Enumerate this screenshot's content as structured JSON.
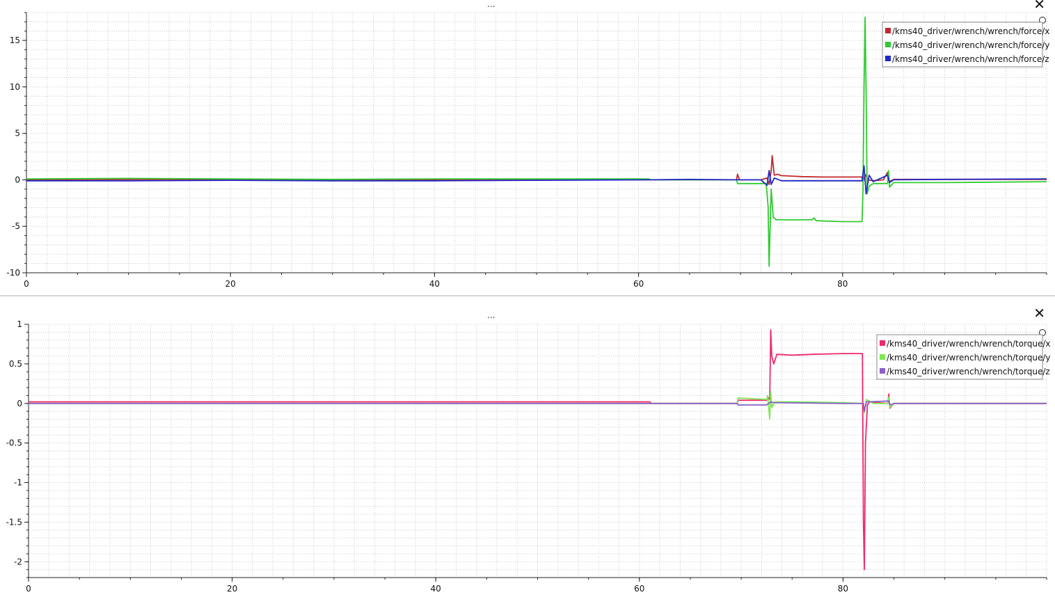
{
  "panels": [
    {
      "handle_text": "...",
      "close_glyph": "✕",
      "chart_data": {
        "type": "line",
        "xlim": [
          0,
          100
        ],
        "ylim": [
          -10,
          18
        ],
        "x_ticks": [
          0,
          20,
          40,
          60,
          80
        ],
        "y_ticks": [
          -10,
          -5,
          0,
          5,
          10,
          15
        ],
        "grid": true,
        "legend_position": "top-right",
        "series": [
          {
            "name": "/kms40_driver/wrench/wrench/force/x",
            "color": "#c0282d",
            "points": [
              [
                0,
                0
              ],
              [
                10,
                0.05
              ],
              [
                20,
                0.05
              ],
              [
                30,
                0
              ],
              [
                40,
                0
              ],
              [
                50,
                0
              ],
              [
                61,
                0
              ],
              [
                65,
                0
              ],
              [
                69.6,
                0
              ],
              [
                69.7,
                0.6
              ],
              [
                69.9,
                0
              ],
              [
                72,
                0
              ],
              [
                72.6,
                0.2
              ],
              [
                72.8,
                -0.5
              ],
              [
                73,
                1.0
              ],
              [
                73.1,
                2.6
              ],
              [
                73.3,
                0.5
              ],
              [
                73.6,
                0.6
              ],
              [
                74,
                0.45
              ],
              [
                76,
                0.35
              ],
              [
                78,
                0.3
              ],
              [
                80,
                0.3
              ],
              [
                81.9,
                0.3
              ],
              [
                82,
                -0.2
              ],
              [
                82.2,
                0.6
              ],
              [
                82.5,
                0
              ],
              [
                83,
                -0.1
              ],
              [
                84,
                0
              ],
              [
                84.4,
                0.8
              ],
              [
                84.6,
                -0.2
              ],
              [
                85,
                0.05
              ],
              [
                90,
                0.05
              ],
              [
                100,
                0.05
              ]
            ]
          },
          {
            "name": "/kms40_driver/wrench/wrench/force/y",
            "color": "#2fcb2f",
            "points": [
              [
                0,
                0.1
              ],
              [
                10,
                0.15
              ],
              [
                20,
                0.1
              ],
              [
                30,
                0.05
              ],
              [
                40,
                0.1
              ],
              [
                50,
                0.1
              ],
              [
                61,
                0.1
              ],
              [
                61.2,
                0
              ],
              [
                65,
                0
              ],
              [
                69.6,
                0
              ],
              [
                69.7,
                -0.4
              ],
              [
                72,
                -0.4
              ],
              [
                72.5,
                -0.4
              ],
              [
                72.6,
                -1.5
              ],
              [
                72.7,
                -3
              ],
              [
                72.8,
                -9.3
              ],
              [
                72.9,
                -5
              ],
              [
                73,
                -1
              ],
              [
                73.2,
                -4
              ],
              [
                73.5,
                -4.3
              ],
              [
                74,
                -4.3
              ],
              [
                77,
                -4.3
              ],
              [
                77.2,
                -4.1
              ],
              [
                77.4,
                -4.4
              ],
              [
                80,
                -4.5
              ],
              [
                81.9,
                -4.5
              ],
              [
                82,
                -1
              ],
              [
                82.1,
                10
              ],
              [
                82.2,
                17.5
              ],
              [
                82.3,
                10
              ],
              [
                82.4,
                -1.5
              ],
              [
                82.6,
                -0.7
              ],
              [
                83,
                -0.4
              ],
              [
                84.4,
                -0.4
              ],
              [
                84.5,
                1.0
              ],
              [
                84.6,
                -0.8
              ],
              [
                85,
                -0.3
              ],
              [
                90,
                -0.3
              ],
              [
                100,
                -0.2
              ]
            ]
          },
          {
            "name": "/kms40_driver/wrench/wrench/force/z",
            "color": "#1f2ac8",
            "points": [
              [
                0,
                -0.1
              ],
              [
                10,
                -0.1
              ],
              [
                20,
                -0.05
              ],
              [
                30,
                -0.1
              ],
              [
                40,
                -0.1
              ],
              [
                50,
                -0.05
              ],
              [
                61,
                0
              ],
              [
                65,
                0.05
              ],
              [
                69.6,
                0
              ],
              [
                72,
                0
              ],
              [
                72.6,
                -0.6
              ],
              [
                72.8,
                1.0
              ],
              [
                73,
                -0.5
              ],
              [
                73.3,
                0.2
              ],
              [
                74,
                -0.1
              ],
              [
                78,
                -0.1
              ],
              [
                81.9,
                -0.1
              ],
              [
                82.1,
                1.5
              ],
              [
                82.3,
                -1.5
              ],
              [
                82.6,
                0.5
              ],
              [
                83,
                -0.2
              ],
              [
                84.4,
                0.5
              ],
              [
                84.6,
                -0.3
              ],
              [
                85,
                0
              ],
              [
                90,
                0.05
              ],
              [
                100,
                0.1
              ]
            ]
          }
        ]
      }
    },
    {
      "handle_text": "...",
      "close_glyph": "✕",
      "chart_data": {
        "type": "line",
        "xlim": [
          0,
          100
        ],
        "ylim": [
          -2.2,
          1.0
        ],
        "x_ticks": [
          0,
          20,
          40,
          60,
          80
        ],
        "y_ticks": [
          1,
          0.5,
          0,
          -0.5,
          -1,
          -1.5,
          -2
        ],
        "grid": true,
        "legend_position": "top-right",
        "series": [
          {
            "name": "/kms40_driver/wrench/wrench/torque/x",
            "color": "#f0286e",
            "points": [
              [
                0,
                0.02
              ],
              [
                20,
                0.02
              ],
              [
                40,
                0.02
              ],
              [
                61,
                0.02
              ],
              [
                61.2,
                0
              ],
              [
                69.6,
                0
              ],
              [
                69.7,
                0.04
              ],
              [
                72.5,
                0.04
              ],
              [
                72.6,
                0.08
              ],
              [
                72.8,
                0.05
              ],
              [
                72.9,
                0.93
              ],
              [
                73,
                0.6
              ],
              [
                73.2,
                0.5
              ],
              [
                73.5,
                0.62
              ],
              [
                75,
                0.61
              ],
              [
                77,
                0.62
              ],
              [
                80,
                0.63
              ],
              [
                81.9,
                0.63
              ],
              [
                82,
                -1.5
              ],
              [
                82.1,
                -2.1
              ],
              [
                82.2,
                -0.5
              ],
              [
                82.4,
                -0.02
              ],
              [
                82.6,
                0.02
              ],
              [
                84.4,
                0
              ],
              [
                84.5,
                0.12
              ],
              [
                84.6,
                -0.06
              ],
              [
                85,
                0
              ],
              [
                90,
                0
              ],
              [
                100,
                0
              ]
            ]
          },
          {
            "name": "/kms40_driver/wrench/wrench/torque/y",
            "color": "#7ee854",
            "points": [
              [
                0,
                0
              ],
              [
                20,
                0
              ],
              [
                40,
                0
              ],
              [
                61,
                0
              ],
              [
                69.6,
                0
              ],
              [
                69.7,
                0.07
              ],
              [
                72.5,
                0.05
              ],
              [
                72.6,
                0.1
              ],
              [
                72.8,
                -0.2
              ],
              [
                72.9,
                0.15
              ],
              [
                73,
                -0.05
              ],
              [
                73.3,
                0.02
              ],
              [
                75,
                0.02
              ],
              [
                80,
                0.01
              ],
              [
                82,
                0
              ],
              [
                82.1,
                -0.12
              ],
              [
                82.3,
                0.05
              ],
              [
                83,
                0
              ],
              [
                84.4,
                0
              ],
              [
                84.5,
                0.08
              ],
              [
                84.6,
                -0.05
              ],
              [
                85,
                0
              ],
              [
                100,
                0
              ]
            ]
          },
          {
            "name": "/kms40_driver/wrench/wrench/torque/z",
            "color": "#8b62c8",
            "points": [
              [
                0,
                0
              ],
              [
                20,
                0
              ],
              [
                40,
                0
              ],
              [
                61,
                0
              ],
              [
                69.6,
                0
              ],
              [
                69.7,
                -0.02
              ],
              [
                72.5,
                -0.02
              ],
              [
                72.9,
                0.02
              ],
              [
                73.2,
                0.01
              ],
              [
                80,
                0
              ],
              [
                82,
                0
              ],
              [
                82.1,
                -0.1
              ],
              [
                82.3,
                0.02
              ],
              [
                84.5,
                0.03
              ],
              [
                84.6,
                -0.02
              ],
              [
                85,
                0
              ],
              [
                100,
                0
              ]
            ]
          }
        ]
      }
    }
  ]
}
